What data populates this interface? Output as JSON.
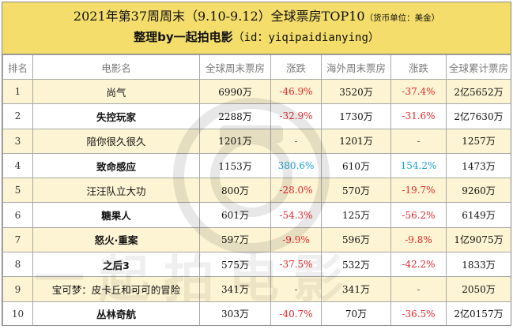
{
  "header": {
    "title": "2021年第37周周末（9.10-9.12）全球票房TOP10",
    "note": "（货币单位：美金）",
    "sub_prefix": "整理by一起拍电影",
    "sub_rest": "（id：yiqipaidianying）"
  },
  "columns": [
    "排名",
    "电影名",
    "全球周末票房",
    "涨跌",
    "海外周末票房",
    "涨跌",
    "全球累计票房"
  ],
  "rows": [
    {
      "rank": "1",
      "name": "尚气",
      "global_weekend": "6990万",
      "global_change": "-46.9%",
      "overseas_weekend": "3520万",
      "overseas_change": "-37.4%",
      "total": "2亿5652万"
    },
    {
      "rank": "2",
      "name": "失控玩家",
      "global_weekend": "2288万",
      "global_change": "-32.9%",
      "overseas_weekend": "1730万",
      "overseas_change": "-31.6%",
      "total": "2亿7630万"
    },
    {
      "rank": "3",
      "name": "陪你很久很久",
      "global_weekend": "1201万",
      "global_change": "-",
      "overseas_weekend": "1201万",
      "overseas_change": "-",
      "total": "1257万"
    },
    {
      "rank": "4",
      "name": "致命感应",
      "global_weekend": "1153万",
      "global_change": "380.6%",
      "overseas_weekend": "610万",
      "overseas_change": "154.2%",
      "total": "1473万"
    },
    {
      "rank": "5",
      "name": "汪汪队立大功",
      "global_weekend": "800万",
      "global_change": "-28.0%",
      "overseas_weekend": "570万",
      "overseas_change": "-19.7%",
      "total": "9260万"
    },
    {
      "rank": "6",
      "name": "糖果人",
      "global_weekend": "601万",
      "global_change": "-54.3%",
      "overseas_weekend": "125万",
      "overseas_change": "-56.2%",
      "total": "6149万"
    },
    {
      "rank": "7",
      "name": "怒火·重案",
      "global_weekend": "597万",
      "global_change": "-9.9%",
      "overseas_weekend": "596万",
      "overseas_change": "-9.8%",
      "total": "1亿9075万"
    },
    {
      "rank": "8",
      "name": "之后3",
      "global_weekend": "575万",
      "global_change": "-37.5%",
      "overseas_weekend": "532万",
      "overseas_change": "-42.2%",
      "total": "1833万"
    },
    {
      "rank": "9",
      "name": "宝可梦：皮卡丘和可可的冒险",
      "global_weekend": "341万",
      "global_change": "-",
      "overseas_weekend": "341万",
      "overseas_change": "-",
      "total": "2050万"
    },
    {
      "rank": "10",
      "name": "丛林奇航",
      "global_weekend": "303万",
      "global_change": "-40.7%",
      "overseas_weekend": "70万",
      "overseas_change": "-36.5%",
      "total": "2亿0157万"
    }
  ],
  "colors": {
    "header_bg": "#f4dd6b",
    "odd_row_bg": "#fdf4d3",
    "negative": "#e8282b",
    "positive": "#1aa3d9"
  },
  "watermark": {
    "icon": "camera-logo-icon",
    "text": "一起拍电影"
  }
}
